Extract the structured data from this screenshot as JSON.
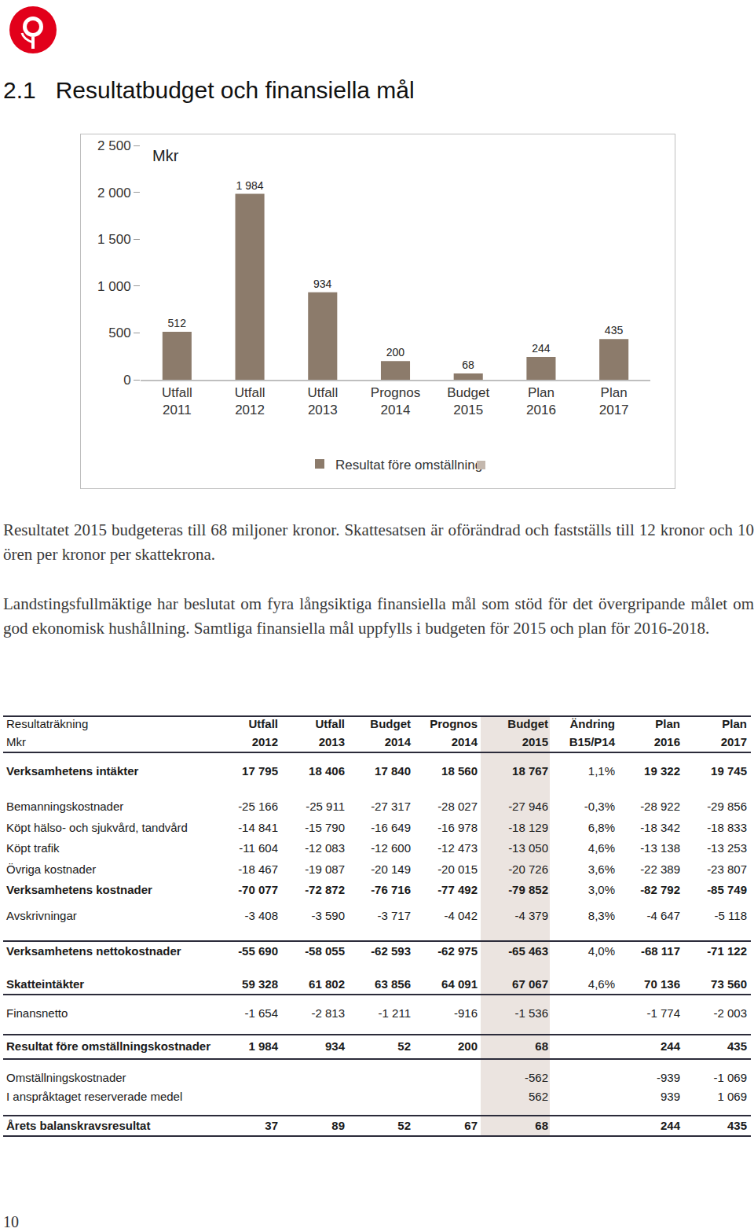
{
  "header": {
    "number": "2.1",
    "title": "Resultatbudget och finansiella mål"
  },
  "chart_data": {
    "type": "bar",
    "annotations": [
      "Mkr"
    ],
    "categories": [
      "Utfall 2011",
      "Utfall 2012",
      "Utfall 2013",
      "Prognos 2014",
      "Budget 2015",
      "Plan 2016",
      "Plan 2017"
    ],
    "series": [
      {
        "name": "Resultat före omställning",
        "color": "#8c7b6b",
        "values": [
          512,
          1984,
          934,
          200,
          68,
          244,
          435
        ],
        "value_labels": [
          "512",
          "1 984",
          "934",
          "200",
          "68",
          "244",
          "435"
        ]
      }
    ],
    "ylim": [
      0,
      2500
    ],
    "yticks": [
      0,
      500,
      {
        "value": 1000,
        "label": "1 000"
      },
      {
        "value": 1500,
        "label": "1 500"
      },
      {
        "value": 2000,
        "label": "2 000"
      },
      {
        "value": 2500,
        "label": "2 500"
      }
    ],
    "grid": false,
    "data_labels": true,
    "legend": "bottom"
  },
  "paragraphs": [
    "Resultatet 2015 budgeteras till 68 miljoner kronor. Skattesatsen är oförändrad och fastställs till 12 kronor och 10 ören per kronor per skattekrona.",
    "Landstingsfullmäktige har beslutat om fyra långsiktiga finansiella mål som stöd för det övergripande målet om god ekonomisk hushållning. Samtliga finansiella mål uppfylls i budgeten för 2015 och plan för 2016-2018."
  ],
  "table": {
    "header": {
      "title": [
        "Resultaträkning",
        "Mkr"
      ],
      "columns": [
        [
          "Utfall",
          "2012"
        ],
        [
          "Utfall",
          "2013"
        ],
        [
          "Budget",
          "2014"
        ],
        [
          "Prognos",
          "2014"
        ],
        [
          "Budget",
          "2015"
        ],
        [
          "Ändring",
          "B15/P14"
        ],
        [
          "Plan",
          "2016"
        ],
        [
          "Plan",
          "2017"
        ]
      ]
    },
    "rows": [
      [
        "Verksamhetens intäkter",
        "17 795",
        "18 406",
        "17 840",
        "18 560",
        "18 767",
        "1,1%",
        "19 322",
        "19 745"
      ],
      [
        "Bemanningskostnader",
        "-25 166",
        "-25 911",
        "-27 317",
        "-28 027",
        "-27 946",
        "-0,3%",
        "-28 922",
        "-29 856"
      ],
      [
        "Köpt hälso- och sjukvård, tandvård",
        "-14 841",
        "-15 790",
        "-16 649",
        "-16 978",
        "-18 129",
        "6,8%",
        "-18 342",
        "-18 833"
      ],
      [
        "Köpt trafik",
        "-11 604",
        "-12 083",
        "-12 600",
        "-12 473",
        "-13 050",
        "4,6%",
        "-13 138",
        "-13 253"
      ],
      [
        "Övriga kostnader",
        "-18 467",
        "-19 087",
        "-20 149",
        "-20 015",
        "-20 726",
        "3,6%",
        "-22 389",
        "-23 807"
      ],
      [
        "Verksamhetens kostnader",
        "-70 077",
        "-72 872",
        "-76 716",
        "-77 492",
        "-79 852",
        "3,0%",
        "-82 792",
        "-85 749"
      ],
      [
        "Avskrivningar",
        "-3 408",
        "-3 590",
        "-3 717",
        "-4 042",
        "-4 379",
        "8,3%",
        "-4 647",
        "-5 118"
      ],
      [
        "Verksamhetens nettokostnader",
        "-55 690",
        "-58 055",
        "-62 593",
        "-62 975",
        "-65 463",
        "4,0%",
        "-68 117",
        "-71 122"
      ],
      [
        "Skatteintäkter",
        "59 328",
        "61 802",
        "63 856",
        "64 091",
        "67 067",
        "4,6%",
        "70 136",
        "73 560"
      ],
      [
        "Finansnetto",
        "-1 654",
        "-2 813",
        "-1 211",
        "-916",
        "-1 536",
        null,
        "-1 774",
        "-2 003"
      ],
      [
        "Resultat före omställningskostnader",
        "1 984",
        "934",
        "52",
        "200",
        "68",
        null,
        "244",
        "435"
      ],
      [
        "Omställningskostnader",
        null,
        null,
        null,
        null,
        "-562",
        null,
        "-939",
        "-1 069"
      ],
      [
        "I anspråktaget reserverade medel",
        null,
        null,
        null,
        null,
        "562",
        null,
        "939",
        "1 069"
      ],
      [
        "Årets balanskravsresultat",
        "37",
        "89",
        "52",
        "67",
        "68",
        null,
        "244",
        "435"
      ]
    ]
  },
  "page_number": "10"
}
